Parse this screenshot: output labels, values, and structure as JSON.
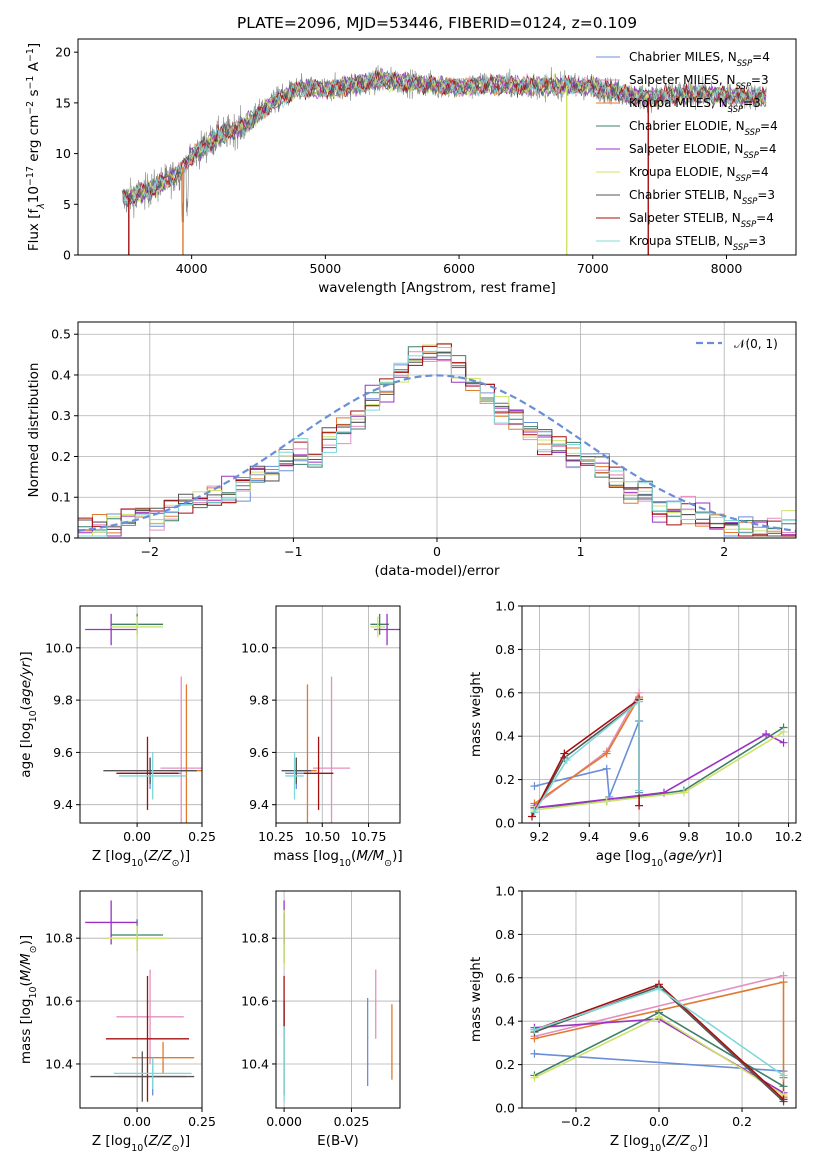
{
  "colors": {
    "Chabrier MILES": "#6a8fd8",
    "Salpeter MILES": "#e48fc0",
    "Kroupa MILES": "#e07a2e",
    "Chabrier ELODIE": "#3f7f6a",
    "Salpeter ELODIE": "#9a32c4",
    "Kroupa ELODIE": "#cde36a",
    "Chabrier STELIB": "#555555",
    "Salpeter STELIB": "#a40f0f",
    "Kroupa STELIB": "#7fd8d8",
    "data": "#7f7f7f",
    "normal": "#6a8fd8"
  },
  "chart_data": [
    {
      "id": "spectrum",
      "type": "line",
      "title": "PLATE=2096, MJD=53446, FIBERID=0124, z=0.109",
      "xlabel": "wavelength [Angstrom, rest frame]",
      "ylabel": "Flux [f_λ10^-17 erg cm^-2 s^-1 A^-1]",
      "xlim": [
        3150,
        8520
      ],
      "ylim": [
        0,
        21.3
      ],
      "xticks": [
        "4000",
        "5000",
        "6000",
        "7000",
        "8000"
      ],
      "yticks": [
        "0",
        "5",
        "10",
        "15",
        "20"
      ],
      "grid": false,
      "legend_position": "right",
      "legend": [
        "Chabrier MILES, N_SSP=4",
        "Salpeter MILES, N_SSP=3",
        "Kroupa MILES, N_SSP=3",
        "Chabrier ELODIE, N_SSP=4",
        "Salpeter ELODIE, N_SSP=4",
        "Kroupa ELODIE, N_SSP=4",
        "Chabrier STELIB, N_SSP=3",
        "Salpeter STELIB, N_SSP=4",
        "Kroupa STELIB, N_SSP=3"
      ],
      "continuum": {
        "wavelength": [
          3500,
          3700,
          3900,
          4000,
          4200,
          4400,
          4600,
          4800,
          5000,
          5200,
          5400,
          5600,
          5800,
          6000,
          6200,
          6500,
          6800,
          7000,
          7200,
          7400,
          7600,
          7800,
          8000,
          8300
        ],
        "flux": [
          5.5,
          6.5,
          8.0,
          9.8,
          11.7,
          12.8,
          15.0,
          16.4,
          16.3,
          16.7,
          17.3,
          17.0,
          16.8,
          16.5,
          16.8,
          16.7,
          16.7,
          16.6,
          16.0,
          15.5,
          15.8,
          15.9,
          15.7,
          15.6
        ]
      }
    },
    {
      "id": "residuals",
      "type": "line",
      "xlabel": "(data-model)/error",
      "ylabel": "Normed distribution",
      "xlim": [
        -2.5,
        2.5
      ],
      "ylim": [
        0,
        0.53
      ],
      "xticks": [
        "−2",
        "−1",
        "0",
        "1",
        "2"
      ],
      "yticks": [
        "0.0",
        "0.1",
        "0.2",
        "0.3",
        "0.4",
        "0.5"
      ],
      "grid": true,
      "legend_position": "top-right",
      "legend": [
        "𝒩(0, 1)"
      ],
      "bin_width": 0.1,
      "histogram_base": [
        0.02,
        0.03,
        0.035,
        0.04,
        0.05,
        0.06,
        0.07,
        0.08,
        0.085,
        0.1,
        0.11,
        0.13,
        0.15,
        0.17,
        0.19,
        0.2,
        0.2,
        0.24,
        0.27,
        0.29,
        0.34,
        0.36,
        0.4,
        0.44,
        0.46,
        0.45,
        0.42,
        0.38,
        0.35,
        0.32,
        0.3,
        0.27,
        0.25,
        0.22,
        0.2,
        0.19,
        0.17,
        0.14,
        0.12,
        0.11,
        0.08,
        0.07,
        0.06,
        0.05,
        0.04,
        0.03,
        0.025,
        0.02,
        0.02,
        0.02
      ]
    },
    {
      "id": "age-vs-z",
      "type": "scatter",
      "xlabel": "Z [log10(Z/Z⊙)]",
      "ylabel": "age  [log10(age/yr)]",
      "xlim": [
        -0.22,
        0.25
      ],
      "ylim": [
        9.33,
        10.16
      ],
      "xticks": [
        "0.00",
        "0.25"
      ],
      "yticks": [
        "9.4",
        "9.6",
        "9.8",
        "10.0"
      ],
      "grid": true,
      "points": [
        {
          "model": "Chabrier MILES",
          "x": 0.05,
          "y": 9.52,
          "xerr": 0.12,
          "yerr": 0.06
        },
        {
          "model": "Salpeter MILES",
          "x": 0.17,
          "y": 9.54,
          "xerr": 0.08,
          "yerr": 0.35
        },
        {
          "model": "Kroupa MILES",
          "x": 0.19,
          "y": 9.53,
          "xerr": 0.06,
          "yerr": 0.33
        },
        {
          "model": "Chabrier ELODIE",
          "x": 0.0,
          "y": 10.09,
          "xerr": 0.1,
          "yerr": 0.04
        },
        {
          "model": "Salpeter ELODIE",
          "x": -0.1,
          "y": 10.07,
          "xerr": 0.1,
          "yerr": 0.06
        },
        {
          "model": "Kroupa ELODIE",
          "x": 0.0,
          "y": 10.08,
          "xerr": 0.1,
          "yerr": 0.04
        },
        {
          "model": "Chabrier STELIB",
          "x": 0.05,
          "y": 9.53,
          "xerr": 0.18,
          "yerr": 0.05
        },
        {
          "model": "Salpeter STELIB",
          "x": 0.04,
          "y": 9.52,
          "xerr": 0.12,
          "yerr": 0.14
        },
        {
          "model": "Kroupa STELIB",
          "x": 0.06,
          "y": 9.51,
          "xerr": 0.13,
          "yerr": 0.09
        }
      ]
    },
    {
      "id": "age-vs-mass",
      "type": "scatter",
      "xlabel": "mass [log10(M/M⊙)]",
      "ylabel": "",
      "xlim": [
        10.25,
        10.92
      ],
      "ylim": [
        9.33,
        10.16
      ],
      "xticks": [
        "10.25",
        "10.50",
        "10.75"
      ],
      "yticks": [
        "9.4",
        "9.6",
        "9.8",
        "10.0"
      ],
      "grid": true,
      "points": [
        {
          "model": "Chabrier MILES",
          "x": 10.36,
          "y": 9.52,
          "xerr": 0.06,
          "yerr": 0.06
        },
        {
          "model": "Salpeter MILES",
          "x": 10.55,
          "y": 9.54,
          "xerr": 0.1,
          "yerr": 0.35
        },
        {
          "model": "Kroupa MILES",
          "x": 10.42,
          "y": 9.53,
          "xerr": 0.05,
          "yerr": 0.33
        },
        {
          "model": "Chabrier ELODIE",
          "x": 10.81,
          "y": 10.09,
          "xerr": 0.05,
          "yerr": 0.04
        },
        {
          "model": "Salpeter ELODIE",
          "x": 10.85,
          "y": 10.07,
          "xerr": 0.07,
          "yerr": 0.06
        },
        {
          "model": "Kroupa ELODIE",
          "x": 10.8,
          "y": 10.08,
          "xerr": 0.04,
          "yerr": 0.04
        },
        {
          "model": "Chabrier STELIB",
          "x": 10.36,
          "y": 9.53,
          "xerr": 0.08,
          "yerr": 0.05
        },
        {
          "model": "Salpeter STELIB",
          "x": 10.48,
          "y": 9.52,
          "xerr": 0.08,
          "yerr": 0.14
        },
        {
          "model": "Kroupa STELIB",
          "x": 10.35,
          "y": 9.51,
          "xerr": 0.05,
          "yerr": 0.09
        }
      ]
    },
    {
      "id": "weight-vs-age",
      "type": "line",
      "xlabel": "age  [log10(age/yr)]",
      "ylabel": "mass weight",
      "xlim": [
        9.13,
        10.23
      ],
      "ylim": [
        0,
        1.0
      ],
      "xticks": [
        "9.2",
        "9.4",
        "9.6",
        "9.8",
        "10.0",
        "10.2"
      ],
      "yticks": [
        "0.0",
        "0.2",
        "0.4",
        "0.6",
        "0.8",
        "1.0"
      ],
      "grid": true,
      "series": [
        {
          "model": "Chabrier MILES",
          "x": [
            9.18,
            9.47,
            9.48,
            9.6,
            9.6
          ],
          "y": [
            0.17,
            0.25,
            0.12,
            0.47,
            0.14
          ]
        },
        {
          "model": "Salpeter MILES",
          "x": [
            9.18,
            9.47,
            9.6
          ],
          "y": [
            0.08,
            0.33,
            0.6
          ]
        },
        {
          "model": "Kroupa MILES",
          "x": [
            9.18,
            9.47,
            9.6
          ],
          "y": [
            0.09,
            0.32,
            0.58
          ]
        },
        {
          "model": "Chabrier ELODIE",
          "x": [
            9.18,
            9.47,
            9.78,
            10.18
          ],
          "y": [
            0.07,
            0.1,
            0.15,
            0.44
          ]
        },
        {
          "model": "Salpeter ELODIE",
          "x": [
            9.18,
            9.7,
            10.11,
            10.18
          ],
          "y": [
            0.07,
            0.14,
            0.41,
            0.37
          ]
        },
        {
          "model": "Kroupa ELODIE",
          "x": [
            9.18,
            9.47,
            9.78,
            10.18
          ],
          "y": [
            0.06,
            0.1,
            0.14,
            0.42
          ]
        },
        {
          "model": "Chabrier STELIB",
          "x": [
            9.18,
            9.3,
            9.6
          ],
          "y": [
            0.05,
            0.3,
            0.56
          ]
        },
        {
          "model": "Salpeter STELIB",
          "x": [
            9.17,
            9.3,
            9.6,
            9.6
          ],
          "y": [
            0.03,
            0.32,
            0.57,
            0.08
          ]
        },
        {
          "model": "Kroupa STELIB",
          "x": [
            9.18,
            9.31,
            9.6,
            9.6
          ],
          "y": [
            0.05,
            0.29,
            0.56,
            0.15
          ]
        }
      ]
    },
    {
      "id": "mass-vs-z",
      "type": "scatter",
      "xlabel": "Z [log10(Z/Z⊙)]",
      "ylabel": "mass [log10(M/M⊙)]",
      "xlim": [
        -0.22,
        0.25
      ],
      "ylim": [
        10.26,
        10.95
      ],
      "xticks": [
        "0.00",
        "0.25"
      ],
      "yticks": [
        "10.4",
        "10.6",
        "10.8"
      ],
      "grid": true,
      "points": [
        {
          "model": "Chabrier MILES",
          "x": 0.06,
          "y": 10.36,
          "xerr": 0.13,
          "yerr": 0.06
        },
        {
          "model": "Salpeter MILES",
          "x": 0.05,
          "y": 10.55,
          "xerr": 0.13,
          "yerr": 0.15
        },
        {
          "model": "Kroupa MILES",
          "x": 0.1,
          "y": 10.42,
          "xerr": 0.12,
          "yerr": 0.05
        },
        {
          "model": "Chabrier ELODIE",
          "x": 0.0,
          "y": 10.81,
          "xerr": 0.1,
          "yerr": 0.05
        },
        {
          "model": "Salpeter ELODIE",
          "x": -0.1,
          "y": 10.85,
          "xerr": 0.1,
          "yerr": 0.07
        },
        {
          "model": "Kroupa ELODIE",
          "x": 0.0,
          "y": 10.8,
          "xerr": 0.12,
          "yerr": 0.04
        },
        {
          "model": "Chabrier STELIB",
          "x": 0.02,
          "y": 10.36,
          "xerr": 0.2,
          "yerr": 0.08
        },
        {
          "model": "Salpeter STELIB",
          "x": 0.04,
          "y": 10.48,
          "xerr": 0.16,
          "yerr": 0.2
        },
        {
          "model": "Kroupa STELIB",
          "x": 0.06,
          "y": 10.37,
          "xerr": 0.15,
          "yerr": 0.05
        }
      ]
    },
    {
      "id": "mass-vs-ebv",
      "type": "scatter",
      "xlabel": "E(B-V)",
      "ylabel": "",
      "xlim": [
        -0.003,
        0.043
      ],
      "ylim": [
        10.26,
        10.95
      ],
      "xticks": [
        "0.000",
        "0.025"
      ],
      "yticks": [
        "10.4",
        "10.6",
        "10.8"
      ],
      "grid": true,
      "points": [
        {
          "model": "Chabrier MILES",
          "x": 0.031,
          "y": 10.47,
          "yerr": 0.14
        },
        {
          "model": "Salpeter MILES",
          "x": 0.034,
          "y": 10.59,
          "yerr": 0.11
        },
        {
          "model": "Kroupa MILES",
          "x": 0.04,
          "y": 10.47,
          "yerr": 0.12
        },
        {
          "model": "Chabrier ELODIE",
          "x": 0.0,
          "y": 10.8,
          "yerr": 0.08
        },
        {
          "model": "Salpeter ELODIE",
          "x": 0.0,
          "y": 10.85,
          "yerr": 0.07
        },
        {
          "model": "Kroupa ELODIE",
          "x": 0.0,
          "y": 10.8,
          "yerr": 0.09
        },
        {
          "model": "Chabrier STELIB",
          "x": 0.0,
          "y": 10.45,
          "yerr": 0.15
        },
        {
          "model": "Salpeter STELIB",
          "x": 0.0,
          "y": 10.6,
          "yerr": 0.08
        },
        {
          "model": "Kroupa STELIB",
          "x": 0.0,
          "y": 10.4,
          "yerr": 0.12
        }
      ]
    },
    {
      "id": "weight-vs-z",
      "type": "line",
      "xlabel": "Z [log10(Z/Z⊙)]",
      "ylabel": "mass weight",
      "xlim": [
        -0.33,
        0.33
      ],
      "ylim": [
        0,
        1.0
      ],
      "xticks": [
        "−0.2",
        "0.0",
        "0.2"
      ],
      "yticks": [
        "0.0",
        "0.2",
        "0.4",
        "0.6",
        "0.8",
        "1.0"
      ],
      "grid": true,
      "series": [
        {
          "model": "Chabrier MILES",
          "x": [
            -0.3,
            0.3,
            0.3
          ],
          "y": [
            0.25,
            0.17,
            0.14
          ]
        },
        {
          "model": "Salpeter MILES",
          "x": [
            -0.3,
            0.3
          ],
          "y": [
            0.33,
            0.61
          ]
        },
        {
          "model": "Kroupa MILES",
          "x": [
            -0.3,
            0.3,
            0.3
          ],
          "y": [
            0.32,
            0.58,
            0.05
          ]
        },
        {
          "model": "Chabrier ELODIE",
          "x": [
            -0.3,
            0.0,
            0.3
          ],
          "y": [
            0.15,
            0.44,
            0.1
          ]
        },
        {
          "model": "Salpeter ELODIE",
          "x": [
            -0.3,
            0.0,
            0.3
          ],
          "y": [
            0.37,
            0.41,
            0.07
          ]
        },
        {
          "model": "Kroupa ELODIE",
          "x": [
            -0.3,
            0.0,
            0.3
          ],
          "y": [
            0.14,
            0.42,
            0.06
          ]
        },
        {
          "model": "Chabrier STELIB",
          "x": [
            -0.3,
            0.0,
            0.3
          ],
          "y": [
            0.35,
            0.56,
            0.03
          ]
        },
        {
          "model": "Salpeter STELIB",
          "x": [
            -0.3,
            0.0,
            0.3
          ],
          "y": [
            0.36,
            0.57,
            0.04
          ]
        },
        {
          "model": "Kroupa STELIB",
          "x": [
            -0.3,
            0.0,
            0.3
          ],
          "y": [
            0.36,
            0.55,
            0.15
          ]
        }
      ]
    }
  ]
}
